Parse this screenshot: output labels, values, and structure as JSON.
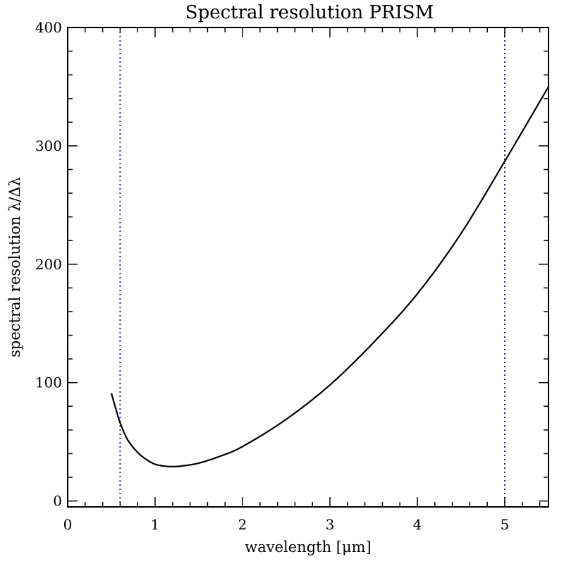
{
  "chart_data": {
    "type": "line",
    "title": "Spectral resolution PRISM",
    "xlabel": "wavelength [μm]",
    "ylabel": "spectral resolution λ/Δλ",
    "xlim": [
      0,
      5.5
    ],
    "ylim": [
      -5,
      400
    ],
    "x_ticks": [
      0,
      1,
      2,
      3,
      4,
      5
    ],
    "y_ticks": [
      0,
      100,
      200,
      300,
      400
    ],
    "grid": false,
    "series": [
      {
        "x": [
          0.5,
          0.55,
          0.6,
          0.65,
          0.7,
          0.8,
          0.9,
          1.0,
          1.1,
          1.2,
          1.3,
          1.5,
          1.75,
          2.0,
          2.5,
          3.0,
          3.5,
          4.0,
          4.5,
          5.0,
          5.5
        ],
        "y": [
          91,
          78,
          66,
          57,
          50,
          41,
          35,
          31,
          29.5,
          29,
          29.5,
          32,
          38,
          46,
          69,
          98,
          134,
          175,
          226,
          287,
          350
        ],
        "color": "#000000"
      }
    ],
    "vertical_lines": [
      {
        "x": 0.6,
        "color": "#1a1ad0",
        "style": "dotted"
      },
      {
        "x": 5.0,
        "color": "#1a1ad0",
        "style": "dotted"
      }
    ]
  }
}
